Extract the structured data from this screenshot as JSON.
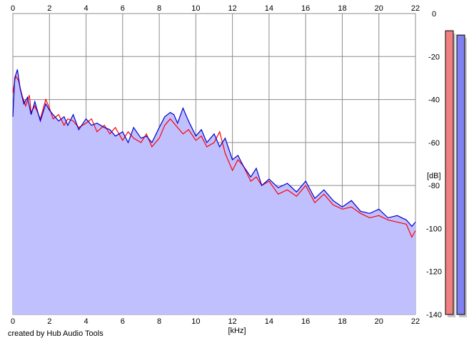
{
  "credit": "created by Hub Audio Tools",
  "chart_data": {
    "type": "area",
    "xlabel": "[kHz]",
    "ylabel": "[dB]",
    "xlim": [
      0,
      22
    ],
    "ylim": [
      -140,
      0
    ],
    "x_ticks": [
      0,
      2,
      4,
      6,
      8,
      10,
      12,
      14,
      16,
      18,
      20,
      22
    ],
    "y_ticks": [
      0,
      -20,
      -40,
      -60,
      -80,
      -100,
      -120,
      -140
    ],
    "grid": true,
    "fill_color": "#c0c0ff",
    "series": [
      {
        "color": "#ff0000",
        "x": [
          0,
          0.15,
          0.3,
          0.5,
          0.7,
          0.9,
          1.0,
          1.2,
          1.5,
          1.8,
          2.0,
          2.2,
          2.5,
          2.8,
          3.0,
          3.3,
          3.6,
          4.0,
          4.3,
          4.6,
          5.0,
          5.3,
          5.6,
          6.0,
          6.3,
          6.6,
          7.0,
          7.3,
          7.6,
          8.0,
          8.3,
          8.6,
          9.0,
          9.3,
          9.6,
          10.0,
          10.3,
          10.6,
          11.0,
          11.3,
          11.6,
          12.0,
          12.3,
          12.6,
          13.0,
          13.3,
          13.6,
          14.0,
          14.5,
          15.0,
          15.5,
          16.0,
          16.5,
          17.0,
          17.5,
          18.0,
          18.5,
          19.0,
          19.5,
          20.0,
          20.5,
          21.0,
          21.5,
          21.8,
          22.0
        ],
        "values": [
          -37,
          -29,
          -31,
          -38,
          -43,
          -38,
          -46,
          -43,
          -49,
          -40,
          -44,
          -49,
          -47,
          -52,
          -49,
          -50,
          -53,
          -51,
          -49,
          -55,
          -52,
          -56,
          -53,
          -59,
          -55,
          -58,
          -60,
          -56,
          -62,
          -58,
          -52,
          -49,
          -53,
          -56,
          -54,
          -59,
          -57,
          -62,
          -60,
          -55,
          -65,
          -73,
          -68,
          -71,
          -78,
          -76,
          -80,
          -78,
          -84,
          -82,
          -85,
          -80,
          -88,
          -84,
          -89,
          -91,
          -90,
          -93,
          -95,
          -94,
          -96,
          -97,
          -98,
          -104,
          -101
        ]
      },
      {
        "color": "#0000cc",
        "x": [
          0,
          0.1,
          0.25,
          0.4,
          0.6,
          0.8,
          1.0,
          1.2,
          1.5,
          1.8,
          2.0,
          2.2,
          2.5,
          2.8,
          3.0,
          3.3,
          3.6,
          4.0,
          4.3,
          4.6,
          5.0,
          5.3,
          5.6,
          6.0,
          6.3,
          6.6,
          7.0,
          7.3,
          7.6,
          8.0,
          8.3,
          8.6,
          8.8,
          9.0,
          9.3,
          9.6,
          10.0,
          10.3,
          10.6,
          11.0,
          11.3,
          11.6,
          12.0,
          12.3,
          12.6,
          13.0,
          13.3,
          13.6,
          14.0,
          14.5,
          15.0,
          15.5,
          16.0,
          16.5,
          17.0,
          17.5,
          18.0,
          18.5,
          19.0,
          19.5,
          20.0,
          20.5,
          21.0,
          21.5,
          21.8,
          22.0
        ],
        "values": [
          -48,
          -30,
          -26,
          -35,
          -42,
          -39,
          -47,
          -41,
          -50,
          -42,
          -45,
          -47,
          -50,
          -48,
          -52,
          -47,
          -54,
          -49,
          -52,
          -51,
          -53,
          -54,
          -57,
          -55,
          -60,
          -53,
          -58,
          -57,
          -60,
          -53,
          -48,
          -46,
          -47,
          -51,
          -44,
          -50,
          -57,
          -54,
          -60,
          -56,
          -62,
          -58,
          -68,
          -66,
          -71,
          -76,
          -72,
          -80,
          -77,
          -81,
          -79,
          -83,
          -78,
          -86,
          -82,
          -87,
          -90,
          -87,
          -92,
          -93,
          -91,
          -95,
          -94,
          -96,
          -99,
          -97
        ]
      }
    ],
    "meters": [
      {
        "color": "#f08080",
        "value": -8
      },
      {
        "color": "#8080f0",
        "value": -10
      }
    ]
  }
}
